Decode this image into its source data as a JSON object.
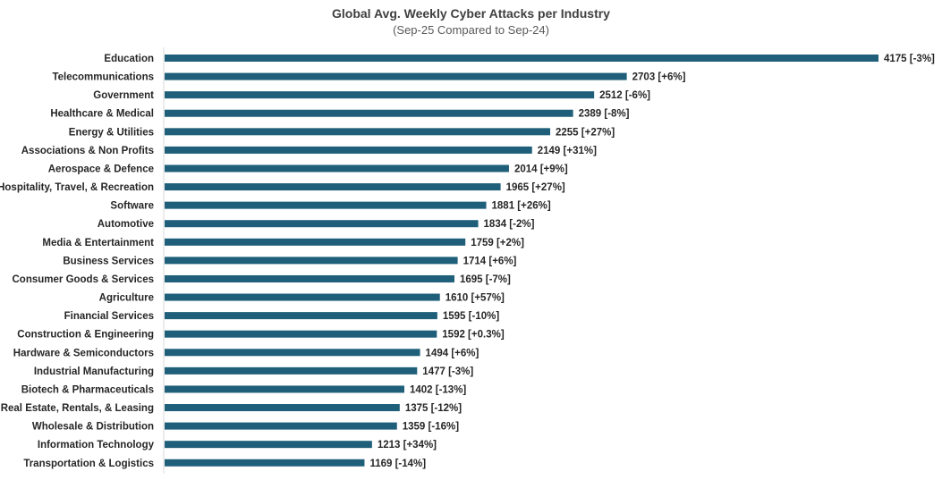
{
  "chart_data": {
    "type": "bar",
    "orientation": "horizontal",
    "title": "Global Avg. Weekly Cyber Attacks per Industry",
    "subtitle": "(Sep-25 Compared to Sep-24)",
    "categories": [
      "Education",
      "Telecommunications",
      "Government",
      "Healthcare & Medical",
      "Energy & Utilities",
      "Associations & Non Profits",
      "Aerospace & Defence",
      "Hospitality, Travel, & Recreation",
      "Software",
      "Automotive",
      "Media & Entertainment",
      "Business Services",
      "Consumer Goods & Services",
      "Agriculture",
      "Financial Services",
      "Construction & Engineering",
      "Hardware & Semiconductors",
      "Industrial Manufacturing",
      "Biotech & Pharmaceuticals",
      "Real Estate, Rentals, & Leasing",
      "Wholesale & Distribution",
      "Information Technology",
      "Transportation & Logistics"
    ],
    "values": [
      4175,
      2703,
      2512,
      2389,
      2255,
      2149,
      2014,
      1965,
      1881,
      1834,
      1759,
      1714,
      1695,
      1610,
      1595,
      1592,
      1494,
      1477,
      1402,
      1375,
      1359,
      1213,
      1169
    ],
    "data_labels": [
      "4175 [-3%]",
      "2703 [+6%]",
      "2512 [-6%]",
      "2389 [-8%]",
      "2255 [+27%]",
      "2149 [+31%]",
      "2014 [+9%]",
      "1965 [+27%]",
      "1881 [+26%]",
      "1834 [-2%]",
      "1759 [+2%]",
      "1714 [+6%]",
      "1695 [-7%]",
      "1610 [+57%]",
      "1595 [-10%]",
      "1592 [+0.3%]",
      "1494 [+6%]",
      "1477 [-3%]",
      "1402 [-13%]",
      "1375 [-12%]",
      "1359 [-16%]",
      "1213 [+34%]",
      "1169 [-14%]"
    ],
    "xlim": [
      0,
      4300
    ],
    "grid": false,
    "legend": "none",
    "bar_color": "#1f5f7a",
    "axis_color": "#d9d9d9"
  }
}
